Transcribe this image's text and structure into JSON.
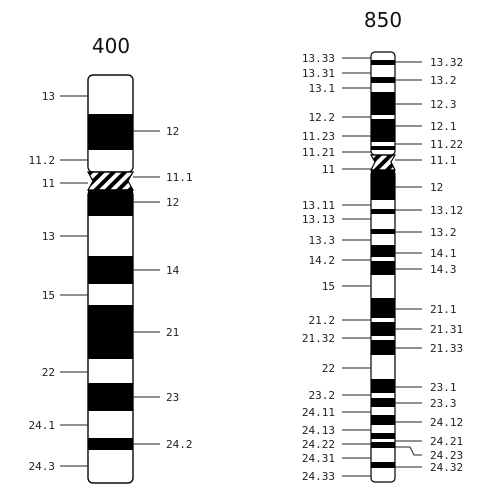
{
  "ideogram_400": {
    "title": "400",
    "left_labels": [
      "13",
      "11.2",
      "11",
      "13",
      "15",
      "22",
      "24.1",
      "24.3"
    ],
    "right_labels": [
      "12",
      "11.1",
      "12",
      "14",
      "21",
      "23",
      "24.2"
    ]
  },
  "ideogram_850": {
    "title": "850",
    "left_labels": [
      "13.33",
      "13.31",
      "13.1",
      "12.2",
      "11.23",
      "11.21",
      "11",
      "13.11",
      "13.13",
      "13.3",
      "14.2",
      "15",
      "21.2",
      "21.32",
      "22",
      "23.2",
      "24.11",
      "24.13",
      "24.22",
      "24.31",
      "24.33"
    ],
    "right_labels": [
      "13.32",
      "13.2",
      "12.3",
      "12.1",
      "11.22",
      "11.1",
      "12",
      "13.12",
      "13.2",
      "14.1",
      "14.3",
      "21.1",
      "21.31",
      "21.33",
      "23.1",
      "23.3",
      "24.12",
      "24.21",
      "24.23",
      "24.32"
    ]
  }
}
